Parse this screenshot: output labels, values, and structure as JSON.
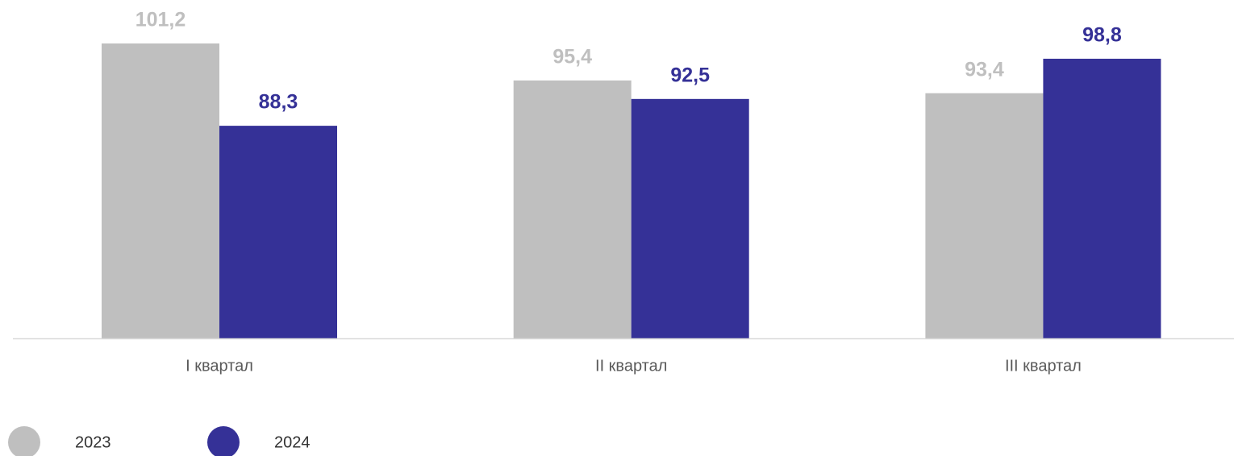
{
  "chart_data": {
    "type": "bar",
    "categories": [
      "I квартал",
      "II квартал",
      "III квартал"
    ],
    "series": [
      {
        "name": "2023",
        "color": "#bfbfbf",
        "values": [
          101.2,
          95.4,
          93.4
        ],
        "value_labels": [
          "101,2",
          "95,4",
          "93,4"
        ]
      },
      {
        "name": "2024",
        "color": "#353197",
        "values": [
          88.3,
          92.5,
          98.8
        ],
        "value_labels": [
          "88,3",
          "92,5",
          "98,8"
        ]
      }
    ],
    "ylim": [
      55,
      108
    ],
    "legend": "bottom-left"
  }
}
